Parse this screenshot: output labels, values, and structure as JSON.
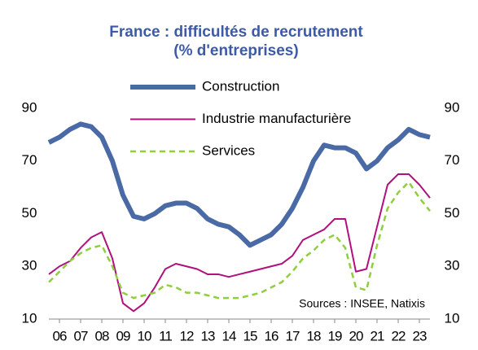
{
  "chart_data": {
    "type": "line",
    "title": [
      "France : difficultés de recrutement",
      "(% d'entreprises)"
    ],
    "annotation": "Sources : INSEE, Natixis",
    "x": [
      2006,
      2006.5,
      2007,
      2007.5,
      2008,
      2008.5,
      2009,
      2009.5,
      2010,
      2010.5,
      2011,
      2011.5,
      2012,
      2012.5,
      2013,
      2013.5,
      2014,
      2014.5,
      2015,
      2015.5,
      2016,
      2016.5,
      2017,
      2017.5,
      2018,
      2018.5,
      2019,
      2019.5,
      2020,
      2020.5,
      2021,
      2021.5,
      2022,
      2022.5,
      2023,
      2023.5,
      2024
    ],
    "series": [
      {
        "name": "Construction",
        "color": "#4a6aa5",
        "width": 6,
        "dash": "solid",
        "values": [
          77,
          79,
          82,
          84,
          83,
          79,
          70,
          57,
          49,
          48,
          50,
          53,
          54,
          54,
          52,
          48,
          46,
          45,
          42,
          38,
          40,
          42,
          46,
          52,
          60,
          70,
          76,
          75,
          75,
          73,
          67,
          70,
          75,
          78,
          82,
          80,
          79
        ]
      },
      {
        "name": "Industrie manufacturière",
        "color": "#b0107e",
        "width": 2,
        "dash": "solid",
        "values": [
          27,
          30,
          32,
          37,
          41,
          43,
          33,
          16,
          13,
          16,
          22,
          29,
          31,
          30,
          29,
          27,
          27,
          26,
          27,
          28,
          29,
          30,
          31,
          34,
          40,
          42,
          44,
          48,
          48,
          28,
          29,
          45,
          61,
          65,
          65,
          61,
          56
        ]
      },
      {
        "name": "Services",
        "color": "#8fce3f",
        "width": 2.5,
        "dash": "dashed",
        "values": [
          24,
          28,
          32,
          35,
          37,
          38,
          30,
          20,
          18,
          19,
          20,
          23,
          22,
          20,
          20,
          19,
          18,
          18,
          18,
          19,
          20,
          22,
          24,
          28,
          33,
          36,
          40,
          42,
          37,
          22,
          21,
          38,
          52,
          58,
          62,
          56,
          51
        ]
      }
    ],
    "xlim": [
      2006,
      2024
    ],
    "xticks": [
      {
        "value": 2006.5,
        "label": "06"
      },
      {
        "value": 2007.5,
        "label": "07"
      },
      {
        "value": 2008.5,
        "label": "08"
      },
      {
        "value": 2009.5,
        "label": "09"
      },
      {
        "value": 2010.5,
        "label": "10"
      },
      {
        "value": 2011.5,
        "label": "11"
      },
      {
        "value": 2012.5,
        "label": "12"
      },
      {
        "value": 2013.5,
        "label": "13"
      },
      {
        "value": 2014.5,
        "label": "14"
      },
      {
        "value": 2015.5,
        "label": "15"
      },
      {
        "value": 2016.5,
        "label": "16"
      },
      {
        "value": 2017.5,
        "label": "17"
      },
      {
        "value": 2018.5,
        "label": "18"
      },
      {
        "value": 2019.5,
        "label": "19"
      },
      {
        "value": 2020.5,
        "label": "20"
      },
      {
        "value": 2021.5,
        "label": "21"
      },
      {
        "value": 2022.5,
        "label": "22"
      },
      {
        "value": 2023.5,
        "label": "23"
      }
    ],
    "ylim": [
      10,
      90
    ],
    "yticks": [
      10,
      30,
      50,
      70,
      90
    ],
    "y2lim": [
      10,
      90
    ],
    "y2ticks": [
      10,
      30,
      50,
      70,
      90
    ],
    "grid": false,
    "legend": "top"
  }
}
